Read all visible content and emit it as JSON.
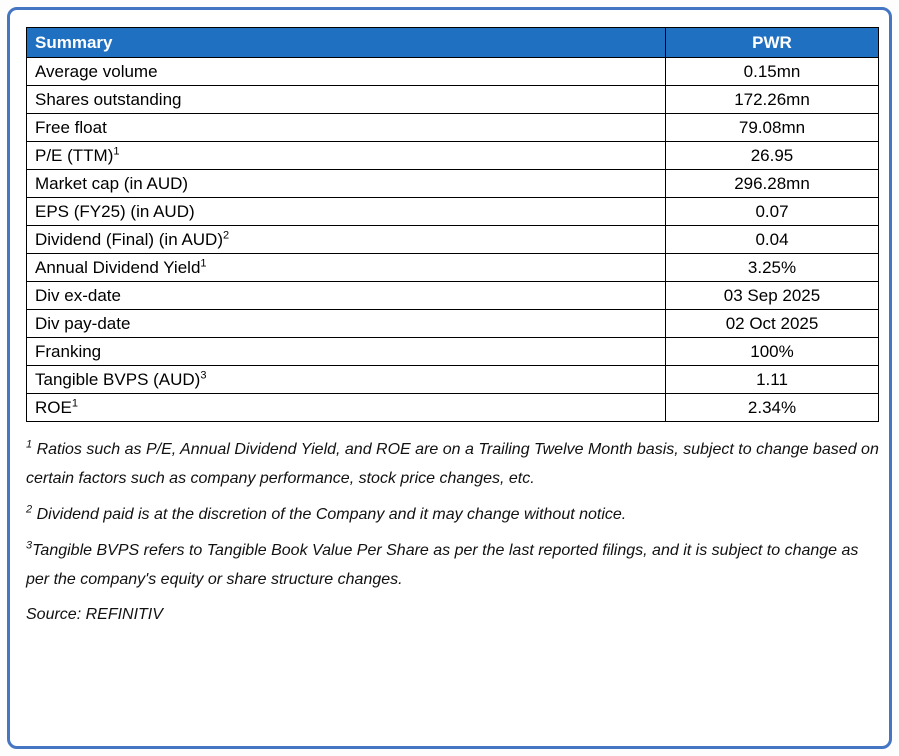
{
  "colors": {
    "header_bg": "#1f70c1",
    "header_text": "#ffffff",
    "frame_border": "#4576c4",
    "table_border": "#000000"
  },
  "table": {
    "title": "Summary",
    "column": "PWR",
    "rows": [
      {
        "label": "Average volume",
        "sup": "",
        "value": "0.15mn"
      },
      {
        "label": "Shares outstanding",
        "sup": "",
        "value": "172.26mn"
      },
      {
        "label": "Free float",
        "sup": "",
        "value": "79.08mn"
      },
      {
        "label": "P/E (TTM)",
        "sup": "1",
        "value": "26.95"
      },
      {
        "label": "Market cap (in AUD)",
        "sup": "",
        "value": "296.28mn"
      },
      {
        "label": "EPS (FY25) (in AUD)",
        "sup": "",
        "value": "0.07"
      },
      {
        "label": "Dividend (Final) (in AUD)",
        "sup": "2",
        "value": "0.04"
      },
      {
        "label": "Annual Dividend Yield",
        "sup": "1",
        "value": "3.25%"
      },
      {
        "label": "Div ex-date",
        "sup": "",
        "value": "03 Sep 2025"
      },
      {
        "label": "Div pay-date",
        "sup": "",
        "value": "02 Oct 2025"
      },
      {
        "label": "Franking",
        "sup": "",
        "value": "100%"
      },
      {
        "label": "Tangible BVPS (AUD)",
        "sup": "3",
        "value": "1.11"
      },
      {
        "label": "ROE",
        "sup": "1",
        "value": "2.34%"
      }
    ]
  },
  "footnotes": [
    {
      "sup": "1",
      "text": "Ratios such as P/E,  Annual Dividend Yield, and ROE are on a Trailing Twelve Month basis, subject to change based on certain factors such as company performance, stock price changes, etc."
    },
    {
      "sup": "2",
      "text": "Dividend paid is at the discretion of the Company and it may change without notice."
    },
    {
      "sup": "3",
      "text": "Tangible BVPS refers to Tangible Book Value Per Share as per the last reported filings, and it is subject to change as per the company's equity or share structure changes."
    }
  ],
  "source": "Source: REFINITIV"
}
